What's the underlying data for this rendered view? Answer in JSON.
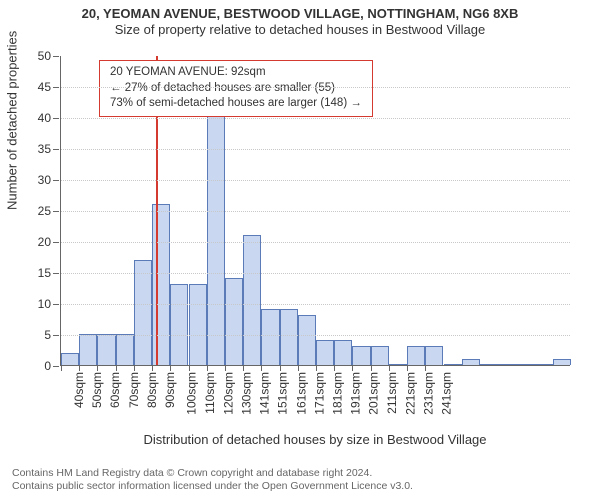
{
  "title_line1": "20, YEOMAN AVENUE, BESTWOOD VILLAGE, NOTTINGHAM, NG6 8XB",
  "title_line2": "Size of property relative to detached houses in Bestwood Village",
  "title1_fontsize": 13,
  "title2_fontsize": 13,
  "y_axis_label": "Number of detached properties",
  "x_axis_label": "Distribution of detached houses by size in Bestwood Village",
  "chart": {
    "type": "histogram",
    "bar_color": "#c9d8f0",
    "bar_border_color": "#5a7bb8",
    "grid_color": "#c8c8c8",
    "background_color": "#ffffff",
    "ylim": [
      0,
      50
    ],
    "ytick_step": 5,
    "yticks": [
      0,
      5,
      10,
      15,
      20,
      25,
      30,
      35,
      40,
      45,
      50
    ],
    "x_start": 40,
    "x_step": 10,
    "xticks_labeled": [
      "40sqm",
      "50sqm",
      "60sqm",
      "70sqm",
      "80sqm",
      "90sqm",
      "100sqm",
      "110sqm",
      "120sqm",
      "130sqm",
      "141sqm",
      "151sqm",
      "161sqm",
      "171sqm",
      "181sqm",
      "191sqm",
      "201sqm",
      "211sqm",
      "221sqm",
      "231sqm",
      "241sqm"
    ],
    "values": [
      2,
      5,
      5,
      5,
      17,
      26,
      13,
      13,
      45,
      14,
      21,
      9,
      9,
      8,
      4,
      4,
      3,
      3,
      0,
      3,
      3,
      0,
      1,
      0,
      0,
      0,
      0,
      1
    ]
  },
  "marker": {
    "x_value": 92,
    "color": "#d43a2f"
  },
  "annotation": {
    "line1": "20 YEOMAN AVENUE: 92sqm",
    "line2": "← 27% of detached houses are smaller (55)",
    "line3": "73% of semi-detached houses are larger (148) →",
    "border_color": "#d43a2f",
    "font_size": 11.5
  },
  "footer": {
    "line1": "Contains HM Land Registry data © Crown copyright and database right 2024.",
    "line2": "Contains public sector information licensed under the Open Government Licence v3.0."
  }
}
